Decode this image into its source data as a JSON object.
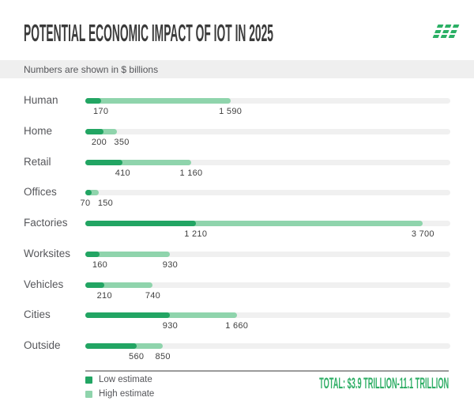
{
  "header": {
    "title": "POTENTIAL ECONOMIC IMPACT OF IOT IN 2025"
  },
  "units_note": "Numbers are shown in $ billions",
  "chart_data": {
    "type": "bar",
    "orientation": "horizontal",
    "title": "Potential economic impact of IoT in 2025",
    "units": "$ billions",
    "categories": [
      "Human",
      "Home",
      "Retail",
      "Offices",
      "Factories",
      "Worksites",
      "Vehicles",
      "Cities",
      "Outside"
    ],
    "series": [
      {
        "name": "Low estimate",
        "color": "#22a563",
        "values": [
          170,
          200,
          410,
          70,
          1210,
          160,
          210,
          930,
          560
        ]
      },
      {
        "name": "High estimate",
        "color": "#8fd4ac",
        "values": [
          1590,
          350,
          1160,
          150,
          3700,
          930,
          740,
          1660,
          850
        ]
      }
    ],
    "labels_low": [
      "170",
      "200",
      "410",
      "70",
      "1 210",
      "160",
      "210",
      "930",
      "560"
    ],
    "labels_high": [
      "1 590",
      "350",
      "1 160",
      "150",
      "3 700",
      "930",
      "740",
      "1 660",
      "850"
    ],
    "xlim": [
      0,
      4000
    ],
    "grid": false,
    "legend_position": "bottom-left"
  },
  "legend": {
    "items": [
      {
        "label": "Low estimate",
        "color": "#22a563"
      },
      {
        "label": "High estimate",
        "color": "#8fd4ac"
      }
    ]
  },
  "footer": {
    "total": "TOTAL: $3.9 TRILLION-11.1 TRILLION"
  },
  "colors": {
    "low": "#22a563",
    "high": "#8fd4ac",
    "track": "#f0f0f0",
    "band_bg": "#efefef",
    "title_text": "#3b3b3b",
    "total_text": "#2fae66",
    "logo_green": "#2bb065",
    "divider": "#9b9b9b"
  }
}
